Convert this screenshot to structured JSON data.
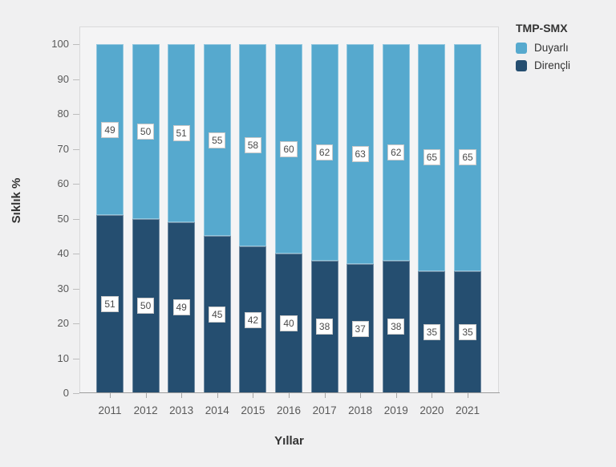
{
  "page": {
    "background_color": "#f0f0f1",
    "panel_background_color": "#f4f4f5",
    "panel_border_color": "#d9d9da",
    "axis_line_color": "#9d9d9d",
    "tick_text_color": "#595959",
    "value_label_text_color": "#4a4a4a"
  },
  "chart_data": {
    "type": "bar",
    "stacked": true,
    "title": "",
    "legend_title": "TMP-SMX",
    "legend_position": "top-right",
    "categories": [
      "2011",
      "2012",
      "2013",
      "2014",
      "2015",
      "2016",
      "2017",
      "2018",
      "2019",
      "2020",
      "2021"
    ],
    "series": [
      {
        "name": "Duyarlı",
        "color": "#56a9ce",
        "values": [
          49,
          50,
          51,
          55,
          58,
          60,
          62,
          63,
          62,
          65,
          65
        ]
      },
      {
        "name": "Dirençli",
        "color": "#254e70",
        "values": [
          51,
          50,
          49,
          45,
          42,
          40,
          38,
          37,
          38,
          35,
          35
        ]
      }
    ],
    "xlabel": "Yıllar",
    "ylabel": "Sıklık %",
    "ylim": [
      0,
      100
    ],
    "ytick_step": 10,
    "grid": false,
    "value_labels": true,
    "value_label_style": "white-box"
  }
}
